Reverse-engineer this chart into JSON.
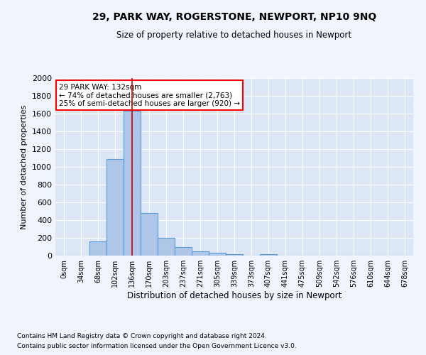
{
  "title1": "29, PARK WAY, ROGERSTONE, NEWPORT, NP10 9NQ",
  "title2": "Size of property relative to detached houses in Newport",
  "xlabel": "Distribution of detached houses by size in Newport",
  "ylabel": "Number of detached properties",
  "footer1": "Contains HM Land Registry data © Crown copyright and database right 2024.",
  "footer2": "Contains public sector information licensed under the Open Government Licence v3.0.",
  "bar_color": "#aec6e8",
  "bar_edge_color": "#5b9bd5",
  "background_color": "#dce6f5",
  "fig_color": "#f0f4fc",
  "grid_color": "#ffffff",
  "annotation_text": "29 PARK WAY: 132sqm\n← 74% of detached houses are smaller (2,763)\n25% of semi-detached houses are larger (920) →",
  "vline_x": 4,
  "vline_color": "#cc0000",
  "categories": [
    "0sqm",
    "34sqm",
    "68sqm",
    "102sqm",
    "136sqm",
    "170sqm",
    "203sqm",
    "237sqm",
    "271sqm",
    "305sqm",
    "339sqm",
    "373sqm",
    "407sqm",
    "441sqm",
    "475sqm",
    "509sqm",
    "542sqm",
    "576sqm",
    "610sqm",
    "644sqm",
    "678sqm"
  ],
  "values": [
    0,
    0,
    160,
    1090,
    1630,
    480,
    200,
    100,
    45,
    30,
    20,
    0,
    20,
    0,
    0,
    0,
    0,
    0,
    0,
    0,
    0
  ],
  "ylim": [
    0,
    2000
  ],
  "yticks": [
    0,
    200,
    400,
    600,
    800,
    1000,
    1200,
    1400,
    1600,
    1800,
    2000
  ]
}
